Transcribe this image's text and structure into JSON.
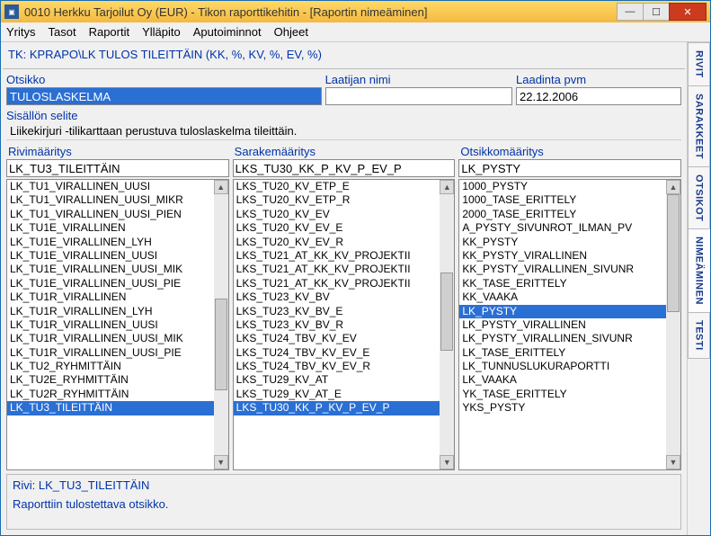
{
  "window": {
    "title": "0010  Herkku Tarjoilut Oy (EUR) - Tikon raporttikehitin - [Raportin nimeäminen]"
  },
  "menu": [
    "Yritys",
    "Tasot",
    "Raportit",
    "Ylläpito",
    "Aputoiminnot",
    "Ohjeet"
  ],
  "pathline": "TK: KPRAPO\\LK TULOS TILEITTÄIN (KK, %, KV, %, EV, %)",
  "fields": {
    "otsikko_label": "Otsikko",
    "otsikko_value": "TULOSLASKELMA",
    "laatija_label": "Laatijan nimi",
    "laatija_value": "",
    "laadinta_label": "Laadinta pvm",
    "laadinta_value": "22.12.2006",
    "sisalto_label": "Sisällön selite",
    "sisalto_value": "Liikekirjuri -tilikarttaan perustuva tuloslaskelma tileittäin."
  },
  "rivimaaritys": {
    "label": "Rivimääritys",
    "selected": "LK_TU3_TILEITTÄIN",
    "items": [
      "LK_TU1_VIRALLINEN_UUSI",
      "LK_TU1_VIRALLINEN_UUSI_MIKR",
      "LK_TU1_VIRALLINEN_UUSI_PIEN",
      "LK_TU1E_VIRALLINEN",
      "LK_TU1E_VIRALLINEN_LYH",
      "LK_TU1E_VIRALLINEN_UUSI",
      "LK_TU1E_VIRALLINEN_UUSI_MIK",
      "LK_TU1E_VIRALLINEN_UUSI_PIE",
      "LK_TU1R_VIRALLINEN",
      "LK_TU1R_VIRALLINEN_LYH",
      "LK_TU1R_VIRALLINEN_UUSI",
      "LK_TU1R_VIRALLINEN_UUSI_MIK",
      "LK_TU1R_VIRALLINEN_UUSI_PIE",
      "LK_TU2_RYHMITTÄIN",
      "LK_TU2E_RYHMITTÄIN",
      "LK_TU2R_RYHMITTÄIN",
      "LK_TU3_TILEITTÄIN"
    ],
    "selected_index": 16
  },
  "sarakemaaritys": {
    "label": "Sarakemääritys",
    "selected": "LKS_TU30_KK_P_KV_P_EV_P",
    "items": [
      "LKS_TU20_KV_ETP_E",
      "LKS_TU20_KV_ETP_R",
      "LKS_TU20_KV_EV",
      "LKS_TU20_KV_EV_E",
      "LKS_TU20_KV_EV_R",
      "LKS_TU21_AT_KK_KV_PROJEKTII",
      "LKS_TU21_AT_KK_KV_PROJEKTII",
      "LKS_TU21_AT_KK_KV_PROJEKTII",
      "LKS_TU23_KV_BV",
      "LKS_TU23_KV_BV_E",
      "LKS_TU23_KV_BV_R",
      "LKS_TU24_TBV_KV_EV",
      "LKS_TU24_TBV_KV_EV_E",
      "LKS_TU24_TBV_KV_EV_R",
      "LKS_TU29_KV_AT",
      "LKS_TU29_KV_AT_E",
      "LKS_TU30_KK_P_KV_P_EV_P"
    ],
    "selected_index": 16
  },
  "otsikkomaaritys": {
    "label": "Otsikkomääritys",
    "selected": "LK_PYSTY",
    "items": [
      "1000_PYSTY",
      "1000_TASE_ERITTELY",
      "2000_TASE_ERITTELY",
      "A_PYSTY_SIVUNROT_ILMAN_PV",
      "KK_PYSTY",
      "KK_PYSTY_VIRALLINEN",
      "KK_PYSTY_VIRALLINEN_SIVUNR",
      "KK_TASE_ERITTELY",
      "KK_VAAKA",
      "LK_PYSTY",
      "LK_PYSTY_VIRALLINEN",
      "LK_PYSTY_VIRALLINEN_SIVUNR",
      "LK_TASE_ERITTELY",
      "LK_TUNNUSLUKURAPORTTI",
      "LK_VAAKA",
      "YK_TASE_ERITTELY",
      "YKS_PYSTY"
    ],
    "selected_index": 9
  },
  "bottom": {
    "row1": "Rivi: LK_TU3_TILEITTÄIN",
    "row2": "Raporttiin tulostettava otsikko."
  },
  "tabs": [
    "RIVIT",
    "SARAKKEET",
    "OTSIKOT",
    "NIMEÄMINEN",
    "TESTI"
  ],
  "tabs_active": 3
}
